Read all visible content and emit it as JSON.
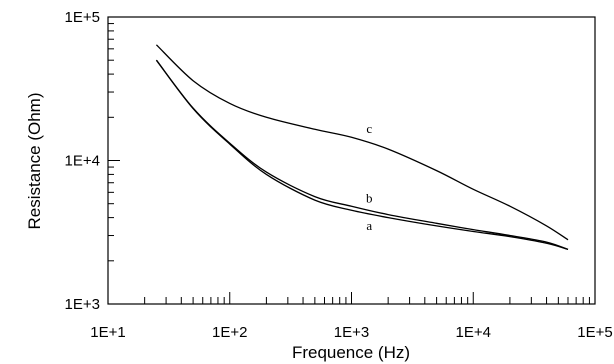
{
  "chart_data": {
    "type": "line",
    "title": "",
    "xlabel": "Frequence (Hz)",
    "ylabel": "Resistance (Ohm)",
    "xscale": "log",
    "yscale": "log",
    "xlim": [
      10,
      100000
    ],
    "ylim": [
      1000,
      100000
    ],
    "x_ticks": [
      "1E+1",
      "1E+2",
      "1E+3",
      "1E+4",
      "1E+5"
    ],
    "y_ticks": [
      "1E+3",
      "1E+4",
      "1E+5"
    ],
    "grid": false,
    "legend": "none",
    "series": [
      {
        "name": "a",
        "x": [
          25,
          50,
          100,
          200,
          500,
          1000,
          2000,
          5000,
          10000,
          20000,
          40000,
          60000
        ],
        "y": [
          50000,
          23000,
          13000,
          8000,
          5300,
          4500,
          4000,
          3500,
          3200,
          2950,
          2650,
          2400
        ]
      },
      {
        "name": "b",
        "x": [
          25,
          50,
          100,
          200,
          500,
          1000,
          2000,
          5000,
          10000,
          20000,
          40000,
          60000
        ],
        "y": [
          50000,
          23200,
          13200,
          8300,
          5600,
          4800,
          4200,
          3650,
          3300,
          3000,
          2700,
          2400
        ]
      },
      {
        "name": "c",
        "x": [
          25,
          50,
          100,
          200,
          500,
          1000,
          2000,
          5000,
          10000,
          20000,
          40000,
          60000
        ],
        "y": [
          64000,
          36000,
          25000,
          20000,
          16500,
          14500,
          12000,
          8500,
          6300,
          4800,
          3500,
          2800
        ]
      }
    ]
  }
}
